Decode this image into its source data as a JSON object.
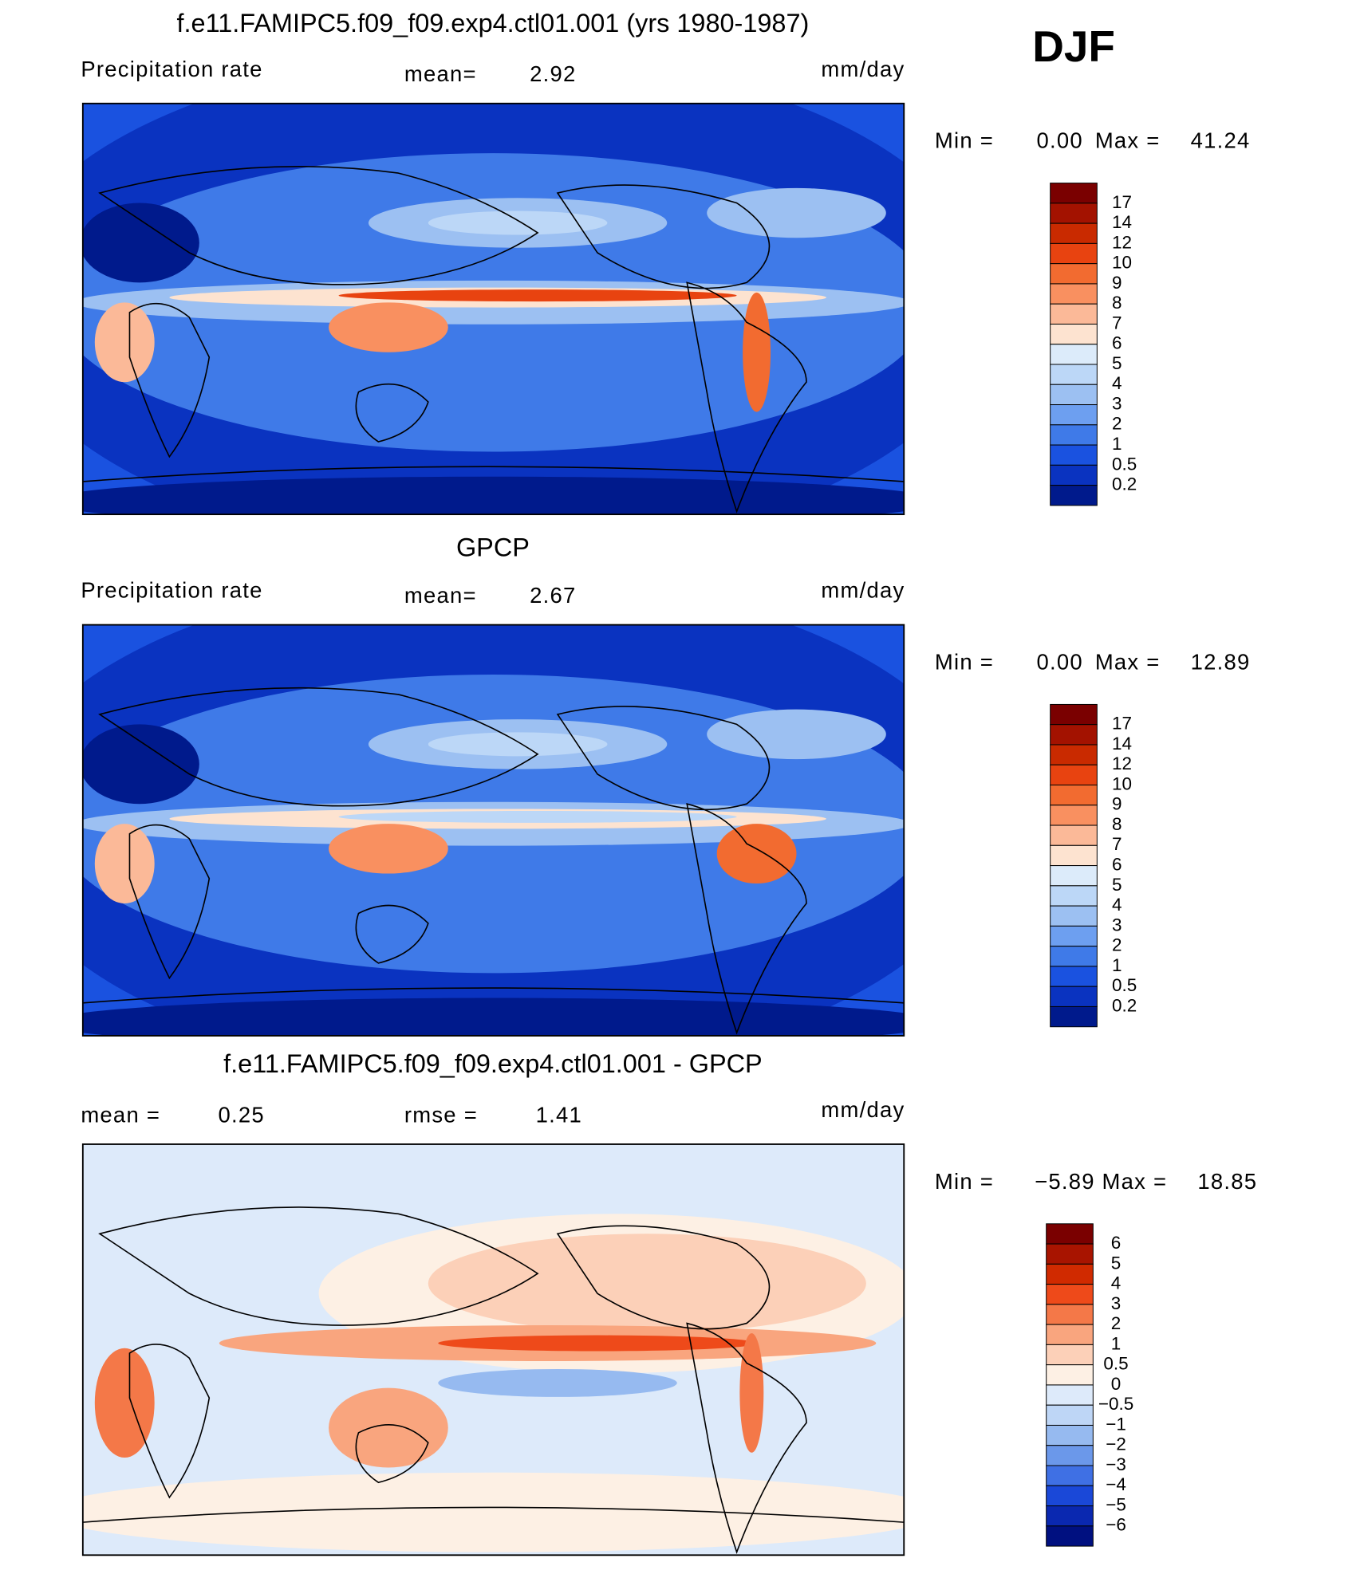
{
  "season": "DJF",
  "panels": [
    {
      "title": "f.e11.FAMIPC5.f09_f09.exp4.ctl01.001 (yrs 1980-1987)",
      "left_label": "Precipitation  rate",
      "stat1_label": "mean=",
      "stat1_value": "2.92",
      "units": "mm/day",
      "min_label": "Min  =",
      "min_value": "0.00",
      "max_label": "Max  =",
      "max_value": "41.24",
      "colorbar": {
        "levels": [
          "17",
          "14",
          "12",
          "10",
          "9",
          "8",
          "7",
          "6",
          "5",
          "4",
          "3",
          "2",
          "1",
          "0.5",
          "0.2"
        ],
        "colors": [
          "#7a0000",
          "#a31200",
          "#c92a00",
          "#e84310",
          "#f26b30",
          "#f99060",
          "#fbb998",
          "#fde3d0",
          "#dcebfa",
          "#bcd7f7",
          "#9cc0f2",
          "#6d9ff0",
          "#3f7ae8",
          "#1a52e0",
          "#0a33c0",
          "#001a8c"
        ]
      }
    },
    {
      "title": "GPCP",
      "left_label": "Precipitation  rate",
      "stat1_label": "mean=",
      "stat1_value": "2.67",
      "units": "mm/day",
      "min_label": "Min  =",
      "min_value": "0.00",
      "max_label": "Max  =",
      "max_value": "12.89",
      "colorbar": {
        "levels": [
          "17",
          "14",
          "12",
          "10",
          "9",
          "8",
          "7",
          "6",
          "5",
          "4",
          "3",
          "2",
          "1",
          "0.5",
          "0.2"
        ],
        "colors": [
          "#7a0000",
          "#a31200",
          "#c92a00",
          "#e84310",
          "#f26b30",
          "#f99060",
          "#fbb998",
          "#fde3d0",
          "#dcebfa",
          "#bcd7f7",
          "#9cc0f2",
          "#6d9ff0",
          "#3f7ae8",
          "#1a52e0",
          "#0a33c0",
          "#001a8c"
        ]
      }
    },
    {
      "title": "f.e11.FAMIPC5.f09_f09.exp4.ctl01.001 - GPCP",
      "left_label": "mean  =",
      "left_value": "0.25",
      "stat1_label": "rmse  =",
      "stat1_value": "1.41",
      "units": "mm/day",
      "min_label": "Min  =",
      "min_value": "−5.89",
      "max_label": "Max  =",
      "max_value": "18.85",
      "colorbar": {
        "levels": [
          "6",
          "5",
          "4",
          "3",
          "2",
          "1",
          "0.5",
          "0",
          "−0.5",
          "−1",
          "−2",
          "−3",
          "−4",
          "−5",
          "−6"
        ],
        "colors": [
          "#7a0000",
          "#a81400",
          "#d02a00",
          "#ee4a1a",
          "#f47848",
          "#f9a57e",
          "#fcd0b8",
          "#fdf0e4",
          "#ddeafa",
          "#bed6f6",
          "#96baf0",
          "#6b98ea",
          "#3f70e4",
          "#1a48d8",
          "#0a28b0",
          "#001080"
        ]
      }
    }
  ]
}
